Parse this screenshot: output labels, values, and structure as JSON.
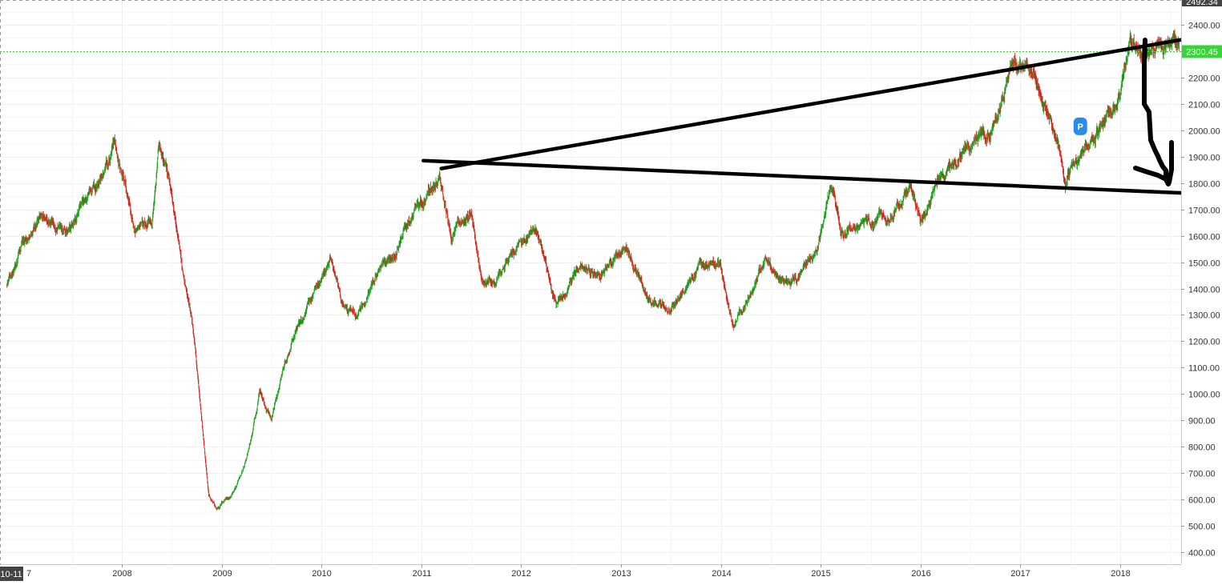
{
  "chart_data": {
    "type": "candlestick",
    "title": "",
    "xlabel": "",
    "ylabel": "",
    "x_tick_labels": [
      "2008",
      "2009",
      "2010",
      "2011",
      "2012",
      "2013",
      "2014",
      "2015",
      "2016",
      "2017",
      "2018"
    ],
    "x_left_partial_label": "7",
    "x_cursor_label": "10-11",
    "y_tick_labels": [
      "400.00",
      "500.00",
      "600.00",
      "700.00",
      "800.00",
      "900.00",
      "1000.00",
      "1100.00",
      "1200.00",
      "1300.00",
      "1400.00",
      "1500.00",
      "1600.00",
      "1700.00",
      "1800.00",
      "1900.00",
      "2000.00",
      "2100.00",
      "2200.00",
      "2300.00",
      "2400.00"
    ],
    "ylim": [
      345,
      2492.34
    ],
    "top_price_label": "2492.34",
    "current_price_label": "2300.45",
    "current_price": 2300.45,
    "colors": {
      "up": "#1e9e1e",
      "down": "#d0281e",
      "current": "#3ad33a",
      "marker": "#2c8be8"
    },
    "price_path": [
      [
        2006.85,
        1420
      ],
      [
        2007.0,
        1560
      ],
      [
        2007.2,
        1680
      ],
      [
        2007.45,
        1600
      ],
      [
        2007.75,
        1780
      ],
      [
        2007.92,
        1950
      ],
      [
        2008.03,
        1800
      ],
      [
        2008.13,
        1620
      ],
      [
        2008.3,
        1680
      ],
      [
        2008.37,
        1950
      ],
      [
        2008.5,
        1760
      ],
      [
        2008.62,
        1450
      ],
      [
        2008.7,
        1300
      ],
      [
        2008.8,
        900
      ],
      [
        2008.87,
        620
      ],
      [
        2008.95,
        560
      ],
      [
        2009.1,
        620
      ],
      [
        2009.25,
        750
      ],
      [
        2009.38,
        1000
      ],
      [
        2009.5,
        900
      ],
      [
        2009.62,
        1100
      ],
      [
        2009.75,
        1250
      ],
      [
        2009.95,
        1400
      ],
      [
        2010.1,
        1500
      ],
      [
        2010.2,
        1350
      ],
      [
        2010.35,
        1300
      ],
      [
        2010.5,
        1420
      ],
      [
        2010.75,
        1550
      ],
      [
        2010.92,
        1700
      ],
      [
        2011.1,
        1780
      ],
      [
        2011.18,
        1820
      ],
      [
        2011.3,
        1600
      ],
      [
        2011.5,
        1700
      ],
      [
        2011.6,
        1450
      ],
      [
        2011.75,
        1420
      ],
      [
        2011.9,
        1520
      ],
      [
        2012.15,
        1620
      ],
      [
        2012.35,
        1330
      ],
      [
        2012.55,
        1480
      ],
      [
        2012.8,
        1450
      ],
      [
        2013.05,
        1560
      ],
      [
        2013.3,
        1350
      ],
      [
        2013.5,
        1320
      ],
      [
        2013.8,
        1500
      ],
      [
        2014.0,
        1480
      ],
      [
        2014.12,
        1260
      ],
      [
        2014.3,
        1380
      ],
      [
        2014.45,
        1500
      ],
      [
        2014.6,
        1420
      ],
      [
        2014.8,
        1450
      ],
      [
        2014.97,
        1560
      ],
      [
        2015.1,
        1790
      ],
      [
        2015.2,
        1620
      ],
      [
        2015.5,
        1640
      ],
      [
        2015.75,
        1700
      ],
      [
        2015.9,
        1800
      ],
      [
        2016.0,
        1650
      ],
      [
        2016.15,
        1800
      ],
      [
        2016.4,
        1920
      ],
      [
        2016.7,
        1980
      ],
      [
        2016.95,
        2250
      ],
      [
        2017.1,
        2240
      ],
      [
        2017.3,
        2050
      ],
      [
        2017.45,
        1800
      ],
      [
        2017.6,
        1900
      ],
      [
        2017.8,
        2000
      ],
      [
        2018.0,
        2120
      ],
      [
        2018.1,
        2330
      ],
      [
        2018.25,
        2300
      ],
      [
        2018.4,
        2330
      ],
      [
        2018.55,
        2320
      ],
      [
        2018.65,
        2290
      ]
    ],
    "trendlines": [
      {
        "from": [
          2011.2,
          1855
        ],
        "to": [
          2020.0,
          2435
        ]
      },
      {
        "from": [
          2011.02,
          1885
        ],
        "to": [
          2020.0,
          1740
        ]
      }
    ],
    "annotation": {
      "label": "P",
      "x": 2017.6,
      "y": 2015
    }
  }
}
